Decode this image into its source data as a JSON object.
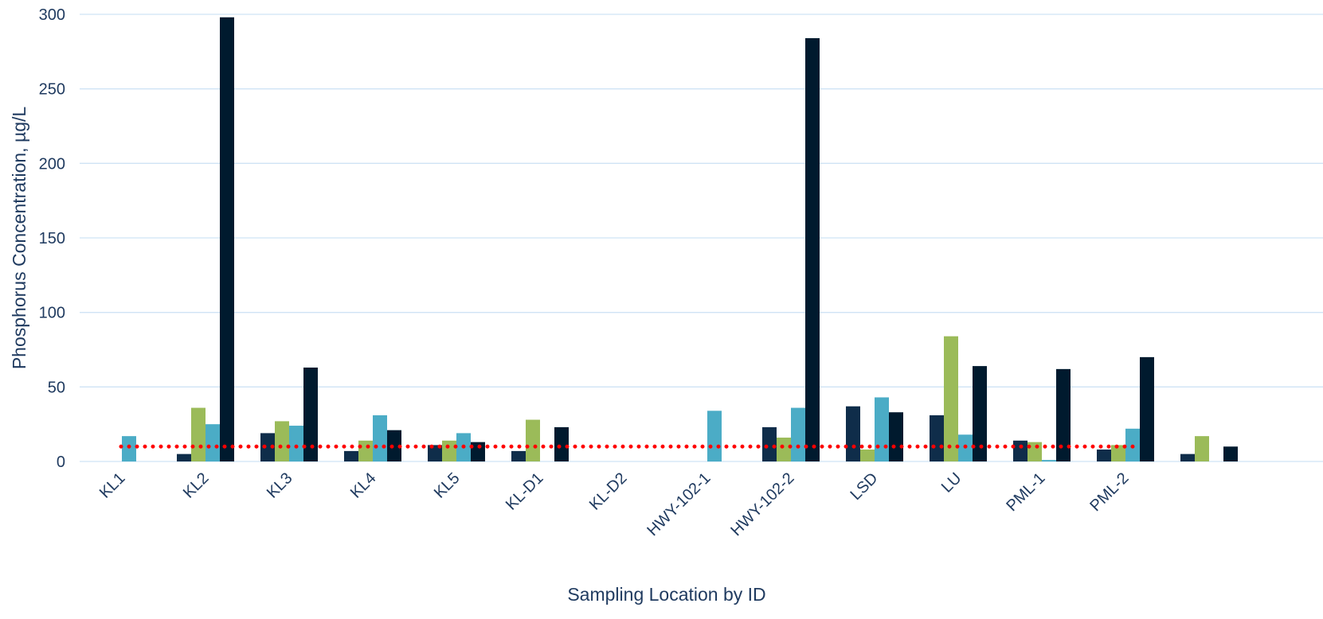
{
  "chart_data": {
    "type": "bar",
    "title": "",
    "xlabel": "Sampling Location by ID",
    "ylabel": "Phosphorus Concentration, µg/L",
    "ylim": [
      0,
      300
    ],
    "yticks": [
      0,
      50,
      100,
      150,
      200,
      250,
      300
    ],
    "grid": true,
    "categories": [
      "KL1",
      "KL2",
      "KL3",
      "KL4",
      "KL5",
      "KL-D1",
      "KL-D2",
      "HWY-102-1",
      "HWY-102-2",
      "LSD",
      "LU",
      "PML-1",
      "PML-2",
      ""
    ],
    "series": [
      {
        "color": "#0f2d4a",
        "values": [
          null,
          5,
          19,
          7,
          11,
          7,
          null,
          null,
          23,
          37,
          31,
          14,
          8,
          5
        ]
      },
      {
        "color": "#9bbb59",
        "values": [
          null,
          36,
          27,
          14,
          14,
          28,
          null,
          null,
          16,
          8,
          84,
          13,
          11,
          17
        ]
      },
      {
        "color": "#4bacc6",
        "values": [
          17,
          25,
          24,
          31,
          19,
          null,
          null,
          34,
          36,
          43,
          18,
          1,
          22,
          null
        ]
      },
      {
        "color": "#001a2e",
        "values": [
          null,
          298,
          63,
          21,
          13,
          23,
          null,
          null,
          284,
          33,
          64,
          62,
          70,
          10
        ]
      }
    ],
    "reference_line": {
      "value": 10,
      "color": "#ff0000",
      "style": "dotted"
    },
    "colors": {
      "grid": "#cfe3f5",
      "text": "#1f3a5f",
      "background": "#ffffff"
    }
  }
}
